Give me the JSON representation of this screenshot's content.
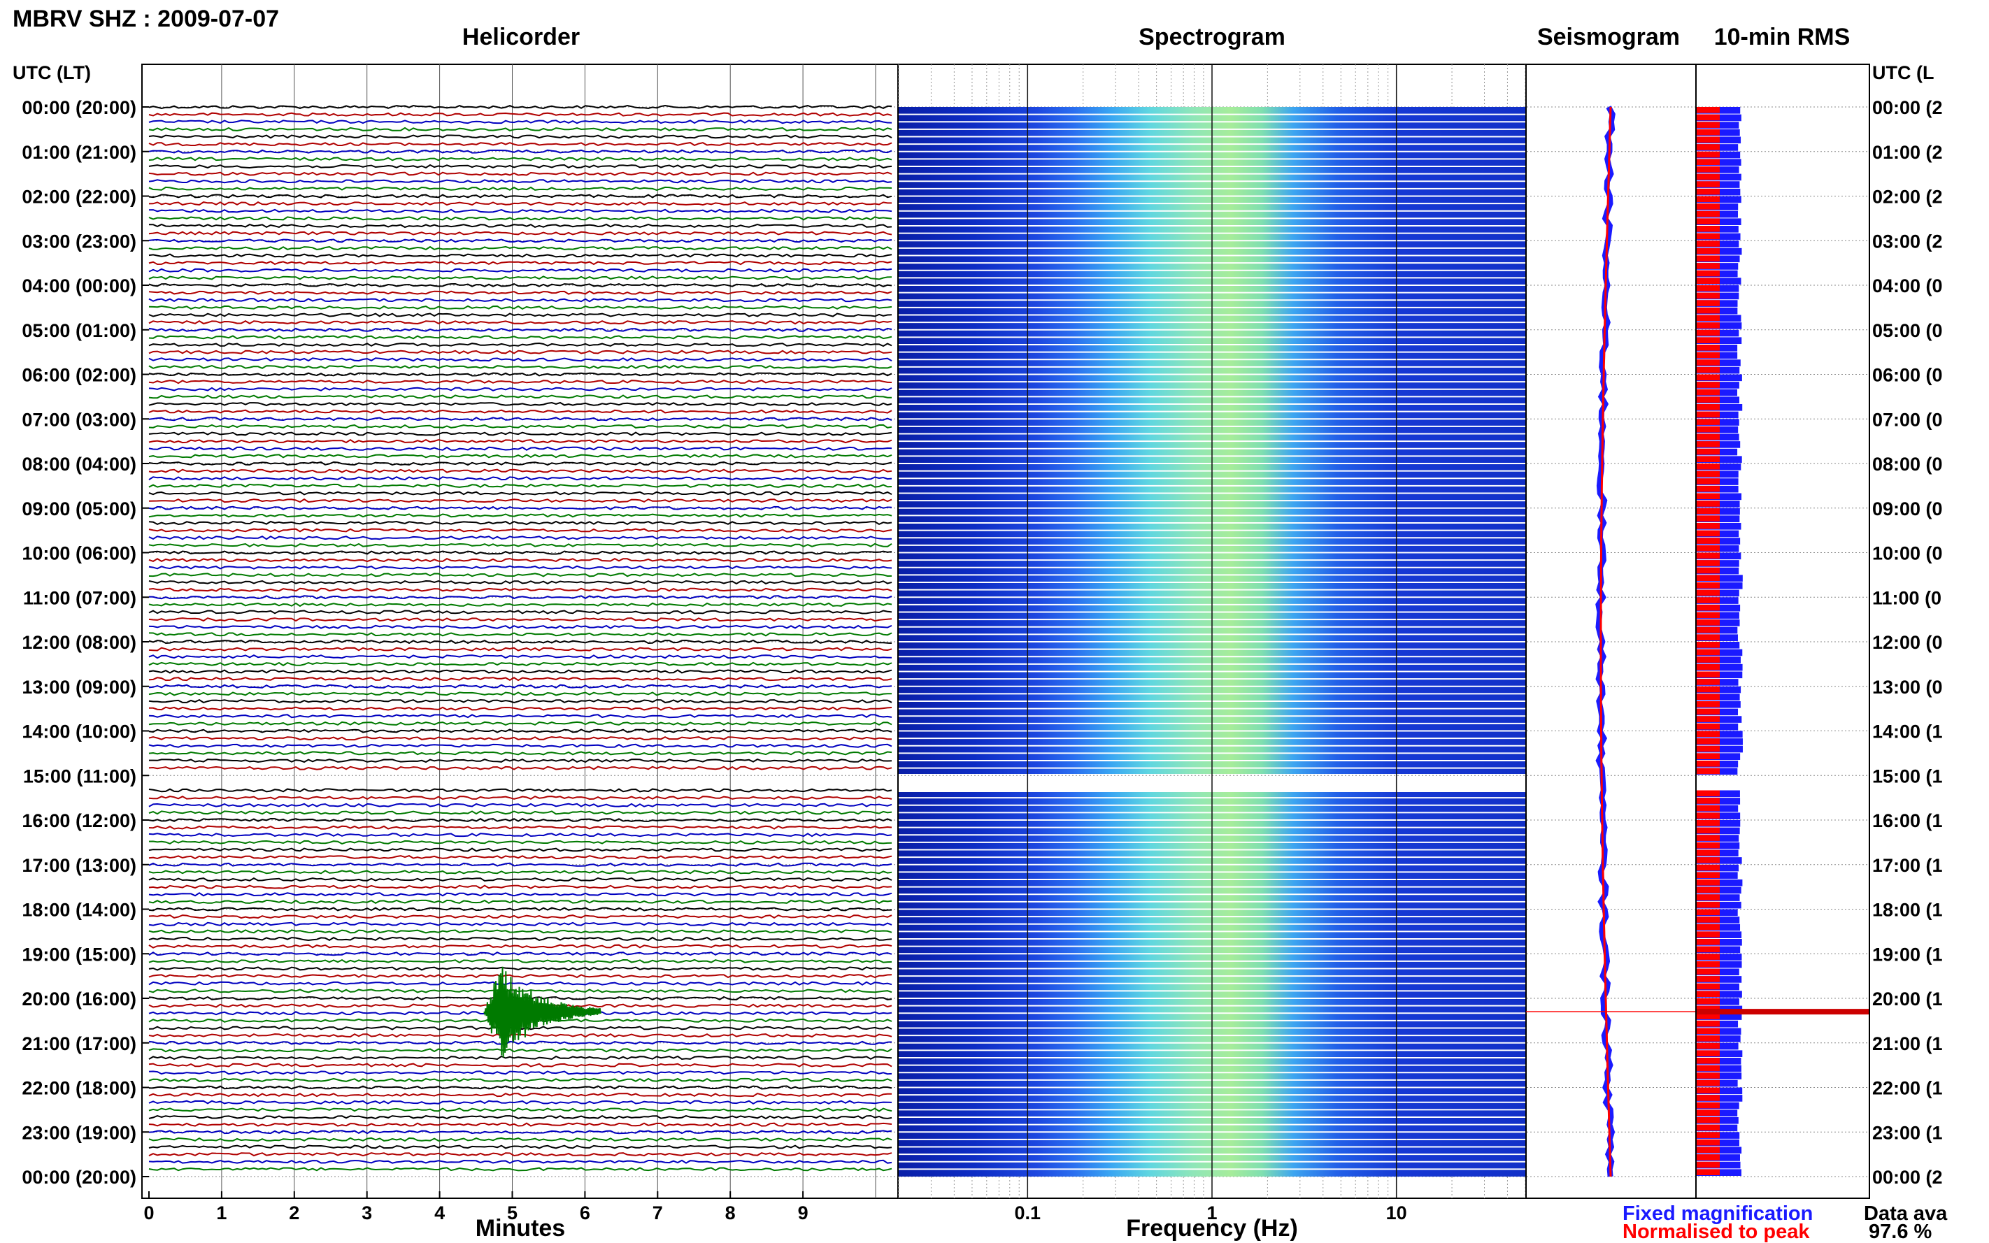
{
  "title": "MBRV SHZ : 2009-07-07",
  "panels": {
    "helicorder": "Helicorder",
    "spectrogram": "Spectrogram",
    "seismogram": "Seismogram",
    "rms": "10-min RMS"
  },
  "time_axis": {
    "left_label": "UTC (LT)",
    "right_label": "UTC (L",
    "hours": [
      "00:00 (20:00)",
      "01:00 (21:00)",
      "02:00 (22:00)",
      "03:00 (23:00)",
      "04:00 (00:00)",
      "05:00 (01:00)",
      "06:00 (02:00)",
      "07:00 (03:00)",
      "08:00 (04:00)",
      "09:00 (05:00)",
      "10:00 (06:00)",
      "11:00 (07:00)",
      "12:00 (08:00)",
      "13:00 (09:00)",
      "14:00 (10:00)",
      "15:00 (11:00)",
      "16:00 (12:00)",
      "17:00 (13:00)",
      "18:00 (14:00)",
      "19:00 (15:00)",
      "20:00 (16:00)",
      "21:00 (17:00)",
      "22:00 (18:00)",
      "23:00 (19:00)",
      "00:00 (20:00)"
    ],
    "right_hours": [
      "00:00 (2",
      "01:00 (2",
      "02:00 (2",
      "03:00 (2",
      "04:00 (0",
      "05:00 (0",
      "06:00 (0",
      "07:00 (0",
      "08:00 (0",
      "09:00 (0",
      "10:00 (0",
      "11:00 (0",
      "12:00 (0",
      "13:00 (0",
      "14:00 (1",
      "15:00 (1",
      "16:00 (1",
      "17:00 (1",
      "18:00 (1",
      "19:00 (1",
      "20:00 (1",
      "21:00 (1",
      "22:00 (1",
      "23:00 (1",
      "00:00 (2"
    ]
  },
  "x_axes": {
    "minutes_label": "Minutes",
    "minutes_ticks": [
      "0",
      "1",
      "2",
      "3",
      "4",
      "5",
      "6",
      "7",
      "8",
      "9"
    ],
    "frequency_label": "Frequency (Hz)",
    "frequency_ticks": [
      "0.1",
      "1",
      "10"
    ]
  },
  "legend": {
    "fixed": "Fixed magnification",
    "normalised": "Normalised to peak",
    "fixed_color": "#1a1aff",
    "normalised_color": "#ff0000"
  },
  "availability": {
    "label": "Data ava",
    "value": "97.6 %"
  },
  "chart_data": {
    "type": "heatmap",
    "station": "MBRV SHZ",
    "date": "2009-07-07",
    "trace_colors": [
      "#000000",
      "#b00000",
      "#0000c0",
      "#007a00"
    ],
    "traces_per_hour": 6,
    "minutes_range": [
      0,
      10
    ],
    "frequency_range_hz": [
      0.02,
      50
    ],
    "frequency_scale": "log",
    "data_gap_utc": [
      15.0,
      15.3
    ],
    "event": {
      "utc_hour": 20.3,
      "minute": 4.9,
      "trace_color": "#007a00"
    },
    "spectrogram_peak_band_hz": [
      0.3,
      2
    ],
    "data_availability_percent": 97.6
  }
}
